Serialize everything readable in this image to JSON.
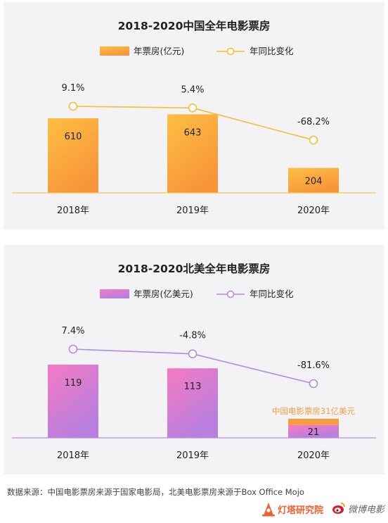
{
  "chart_data": [
    {
      "type": "bar",
      "title": "2018-2020中国全年电影票房",
      "categories": [
        "2018年",
        "2019年",
        "2020年"
      ],
      "series": [
        {
          "name": "年票房(亿元)",
          "type": "bar",
          "values": [
            610,
            643,
            204
          ],
          "color": "#fba33c"
        },
        {
          "name": "年同比变化",
          "type": "line",
          "values": [
            9.1,
            5.4,
            -68.2
          ],
          "labels": [
            "9.1%",
            "5.4%",
            "-68.2%"
          ],
          "color": "#f7bd35"
        }
      ],
      "bar_labels": [
        "610",
        "643",
        "204"
      ],
      "legend": "top-center",
      "grid": false
    },
    {
      "type": "bar",
      "title": "2018-2020北美全年电影票房",
      "categories": [
        "2018年",
        "2019年",
        "2020年"
      ],
      "series": [
        {
          "name": "年票房(亿美元)",
          "type": "bar",
          "values": [
            119,
            113,
            21
          ],
          "color": "#e77ac6"
        },
        {
          "name": "年同比变化",
          "type": "line",
          "values": [
            7.4,
            -4.8,
            -81.6
          ],
          "labels": [
            "7.4%",
            "-4.8%",
            "-81.6%"
          ],
          "color": "#b18ae6"
        }
      ],
      "bar_labels": [
        "119",
        "113",
        "21"
      ],
      "annotation": {
        "text": "中国电影票房31亿美元",
        "value": 31,
        "category": "2020年",
        "color": "#f79d3e"
      },
      "legend": "top-center",
      "grid": false
    }
  ],
  "source_note": "数据来源：中国电影票房来源于国家电影局，北美电影票房来源于Box Office Mojo",
  "logos": {
    "dengta": "灯塔研究院",
    "weibo": "微博电影"
  }
}
